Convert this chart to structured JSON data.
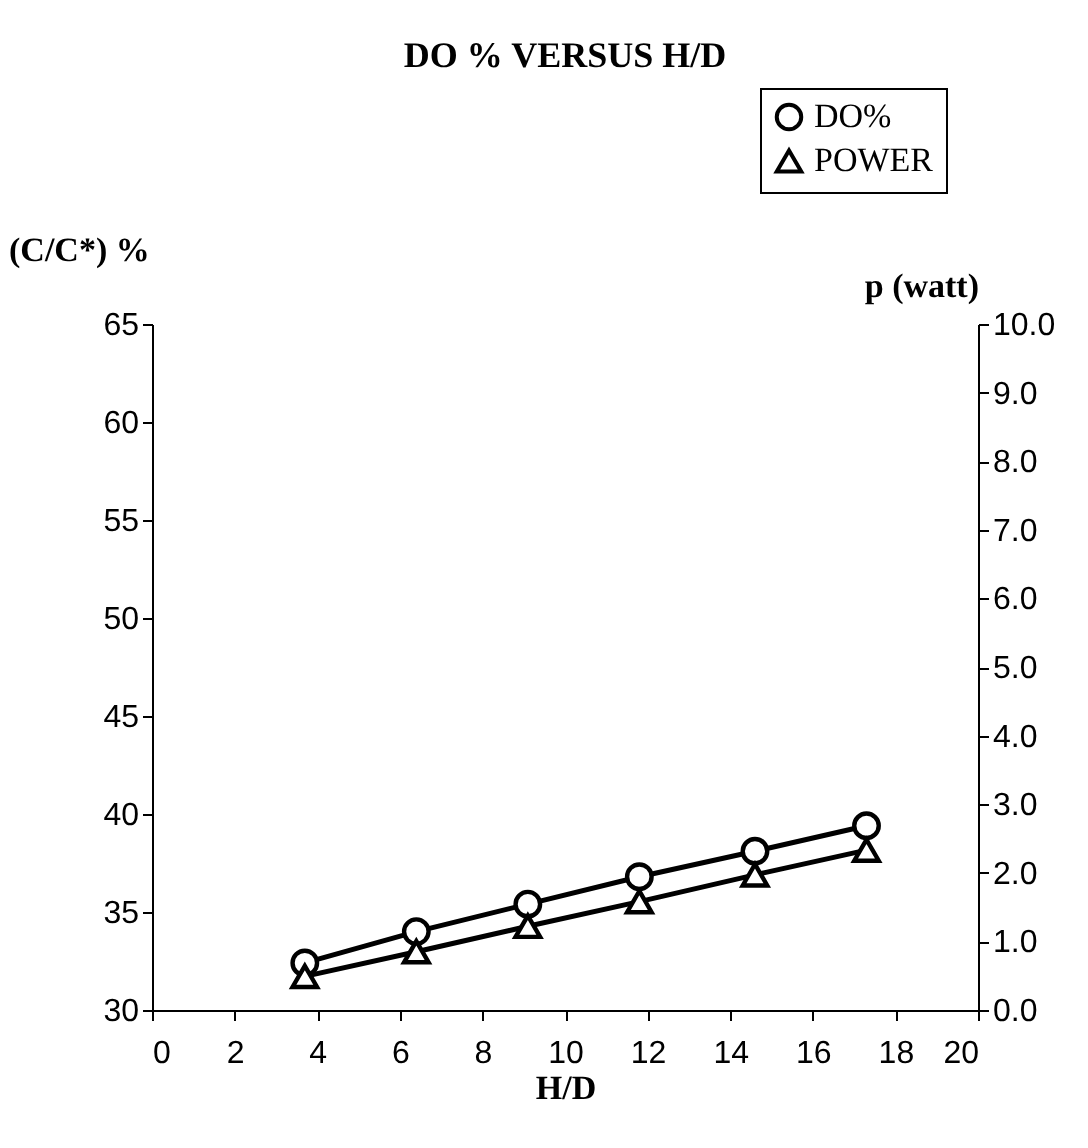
{
  "chart_data": {
    "type": "line",
    "title": "DO % VERSUS H/D",
    "xlabel": "H/D",
    "ylabel": "(C/C*) %",
    "y2label": "p (watt)",
    "x": [
      3.7,
      6.4,
      9.1,
      11.8,
      14.6,
      17.3
    ],
    "xlim": [
      0,
      20
    ],
    "xticks": [
      0,
      2,
      4,
      6,
      8,
      10,
      12,
      14,
      16,
      18,
      20
    ],
    "ylim": [
      30,
      65
    ],
    "yticks": [
      30,
      35,
      40,
      45,
      50,
      55,
      60,
      65
    ],
    "y2lim": [
      0,
      10
    ],
    "y2ticks": [
      {
        "value": 0,
        "label": "0.0"
      },
      {
        "value": 1,
        "label": "1.0"
      },
      {
        "value": 2,
        "label": "2.0"
      },
      {
        "value": 3,
        "label": "3.0"
      },
      {
        "value": 4,
        "label": "4.0"
      },
      {
        "value": 5,
        "label": "5.0"
      },
      {
        "value": 6,
        "label": "6.0"
      },
      {
        "value": 7,
        "label": "7.0"
      },
      {
        "value": 8,
        "label": "8.0"
      },
      {
        "value": 9,
        "label": "9.0"
      },
      {
        "value": 10,
        "label": "10.0"
      }
    ],
    "series": [
      {
        "name": "DO%",
        "color": "#000000",
        "marker": "circle",
        "values": [
          32.4,
          34.0,
          35.4,
          36.8,
          38.1,
          39.4
        ]
      },
      {
        "name": "POWER",
        "color": "#000000",
        "marker": "triangle",
        "axis": "y2",
        "values": [
          0.49,
          0.85,
          1.22,
          1.58,
          1.97,
          2.33
        ]
      }
    ],
    "legend": "top right",
    "grid": false,
    "line_style": "solid"
  }
}
